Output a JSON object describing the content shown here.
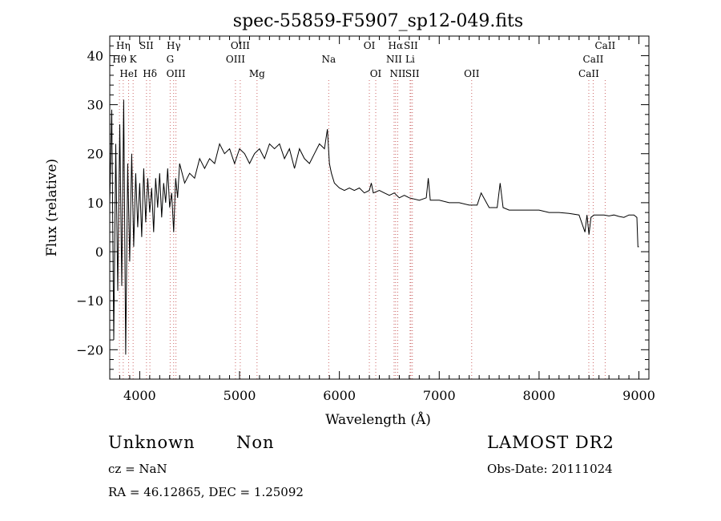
{
  "chart_data": {
    "type": "line",
    "title": "spec-55859-F5907_sp12-049.fits",
    "xlabel": "Wavelength (Å)",
    "ylabel": "Flux (relative)",
    "xlim": [
      3700,
      9100
    ],
    "ylim": [
      -26,
      44
    ],
    "xticks": [
      4000,
      5000,
      6000,
      7000,
      8000,
      9000
    ],
    "yticks": [
      -20,
      -10,
      0,
      10,
      20,
      30,
      40
    ],
    "grid": false,
    "spectrum": {
      "x": [
        3700,
        3720,
        3740,
        3760,
        3780,
        3800,
        3820,
        3840,
        3860,
        3880,
        3900,
        3920,
        3940,
        3960,
        3980,
        4000,
        4020,
        4040,
        4060,
        4080,
        4100,
        4120,
        4140,
        4160,
        4180,
        4200,
        4220,
        4240,
        4260,
        4280,
        4300,
        4320,
        4340,
        4360,
        4380,
        4400,
        4450,
        4500,
        4550,
        4600,
        4650,
        4700,
        4750,
        4800,
        4850,
        4900,
        4950,
        5000,
        5050,
        5100,
        5150,
        5200,
        5250,
        5300,
        5350,
        5400,
        5450,
        5500,
        5550,
        5600,
        5650,
        5700,
        5750,
        5800,
        5850,
        5880,
        5900,
        5920,
        5950,
        6000,
        6050,
        6100,
        6150,
        6200,
        6250,
        6300,
        6320,
        6340,
        6400,
        6450,
        6500,
        6550,
        6600,
        6650,
        6700,
        6800,
        6870,
        6890,
        6910,
        6950,
        7000,
        7100,
        7200,
        7300,
        7380,
        7420,
        7500,
        7580,
        7610,
        7640,
        7700,
        7800,
        7900,
        8000,
        8100,
        8200,
        8300,
        8400,
        8460,
        8480,
        8500,
        8520,
        8550,
        8600,
        8650,
        8700,
        8750,
        8800,
        8850,
        8900,
        8950,
        8980,
        8990,
        9000
      ],
      "y": [
        10,
        29,
        -18,
        22,
        -8,
        26,
        -7,
        31,
        -21,
        18,
        -2,
        20,
        1,
        16,
        5,
        14,
        3,
        17,
        6,
        15,
        8,
        13,
        4,
        15,
        9,
        16,
        7,
        14,
        10,
        17,
        9,
        12,
        4,
        15,
        11,
        18,
        14,
        16,
        15,
        19,
        17,
        19,
        18,
        22,
        20,
        21,
        18,
        21,
        20,
        18,
        20,
        21,
        19,
        22,
        21,
        22,
        19,
        21,
        17,
        21,
        19,
        18,
        20,
        22,
        21,
        25,
        18,
        16,
        14,
        13,
        12.5,
        13,
        12.5,
        13,
        12,
        12.5,
        14,
        12,
        12.5,
        12,
        11.5,
        12,
        11,
        11.5,
        11,
        10.5,
        11,
        15,
        10.5,
        10.5,
        10.5,
        10,
        10,
        9.5,
        9.5,
        12,
        9,
        9,
        14,
        9,
        8.5,
        8.5,
        8.5,
        8.5,
        8,
        8,
        7.8,
        7.5,
        4,
        7.5,
        3.5,
        7,
        7.5,
        7.5,
        7.5,
        7.3,
        7.5,
        7.2,
        7,
        7.5,
        7.5,
        7,
        1,
        1
      ]
    },
    "spectral_lines": [
      {
        "label": "Hη",
        "x": 3835,
        "row": 0
      },
      {
        "label": "Hθ",
        "x": 3797,
        "row": 1
      },
      {
        "label": "HeI",
        "x": 3889,
        "row": 2
      },
      {
        "label": "K",
        "x": 3934,
        "row": 1
      },
      {
        "label": "SII",
        "x": 4068,
        "row": 0
      },
      {
        "label": "Hδ",
        "x": 4102,
        "row": 2
      },
      {
        "label": "Hγ",
        "x": 4340,
        "row": 0
      },
      {
        "label": "G",
        "x": 4305,
        "row": 1
      },
      {
        "label": "OIII",
        "x": 4363,
        "row": 2
      },
      {
        "label": "OIII",
        "x": 5007,
        "row": 0
      },
      {
        "label": "OIII",
        "x": 4959,
        "row": 1
      },
      {
        "label": "Mg",
        "x": 5175,
        "row": 2
      },
      {
        "label": "Na",
        "x": 5893,
        "row": 1
      },
      {
        "label": "OI",
        "x": 6300,
        "row": 0
      },
      {
        "label": "OI",
        "x": 6364,
        "row": 2
      },
      {
        "label": "Hα",
        "x": 6563,
        "row": 0
      },
      {
        "label": "SII",
        "x": 6716,
        "row": 0
      },
      {
        "label": "NII",
        "x": 6548,
        "row": 1
      },
      {
        "label": "Li",
        "x": 6708,
        "row": 1
      },
      {
        "label": "NII",
        "x": 6584,
        "row": 2
      },
      {
        "label": "SII",
        "x": 6731,
        "row": 2
      },
      {
        "label": "OII",
        "x": 7325,
        "row": 2
      },
      {
        "label": "CaII",
        "x": 8662,
        "row": 0
      },
      {
        "label": "CaII",
        "x": 8542,
        "row": 1
      },
      {
        "label": "CaII",
        "x": 8498,
        "row": 2
      }
    ]
  },
  "info": {
    "class": "Unknown",
    "subclass": "Non",
    "survey": "LAMOST DR2",
    "cz": "cz = NaN",
    "obs_date": "Obs-Date: 20111024",
    "coords": "RA =  46.12865, DEC =    1.25092"
  },
  "colors": {
    "line": "#000000",
    "marker": "#cc6666"
  }
}
